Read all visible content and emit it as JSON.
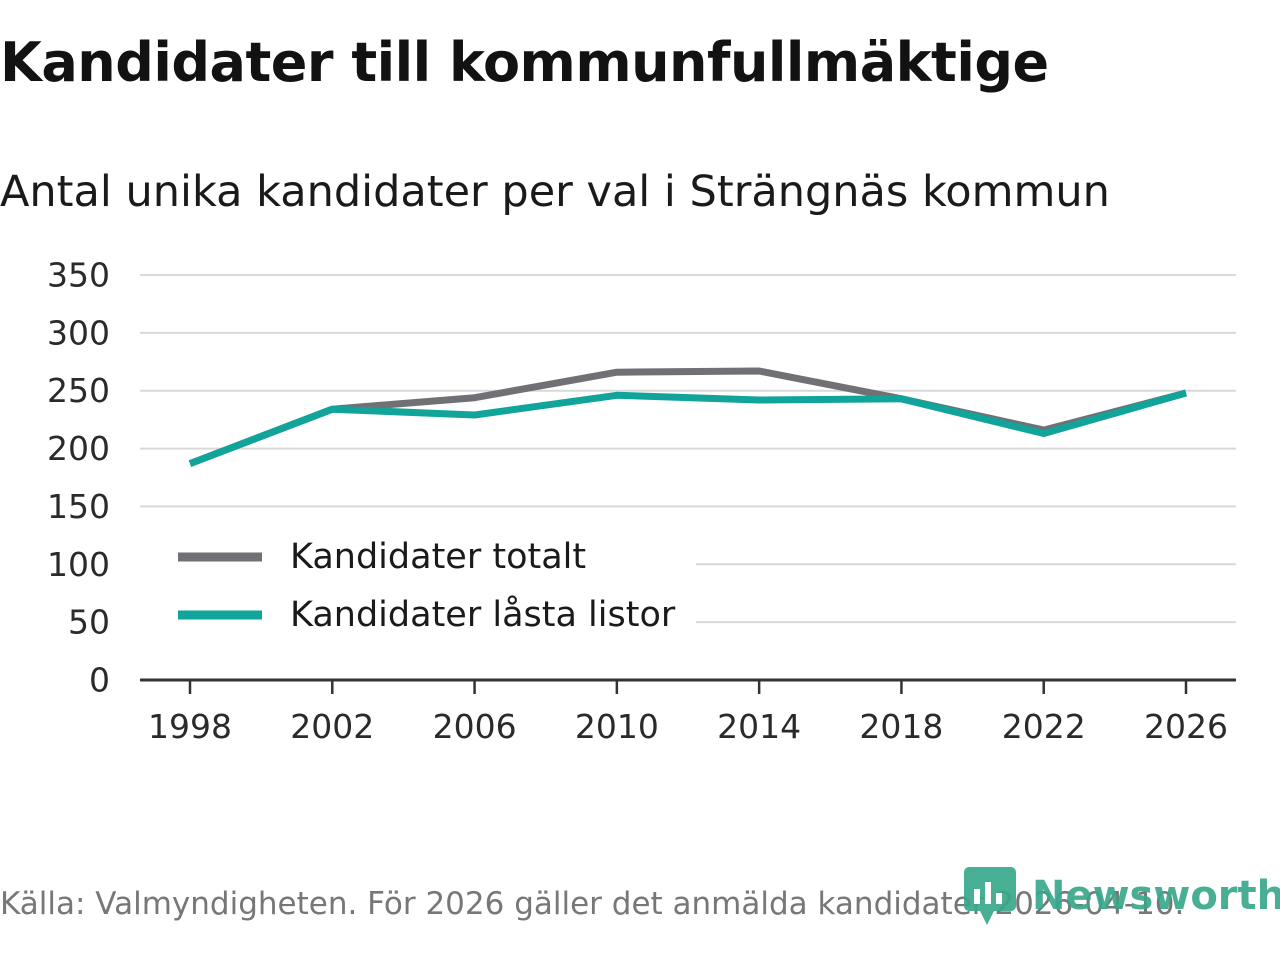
{
  "header": {
    "title": "Kandidater till kommunfullmäktige",
    "subtitle": "Antal unika kandidater per val i Strängnäs kommun"
  },
  "footer": {
    "source": "Källa: Valmyndigheten. För 2026 gäller det anmälda kandidater 2026-04-10.",
    "brand": "Newsworthy"
  },
  "colors": {
    "series_total": "#717075",
    "series_locked": "#10a49b",
    "grid": "#d9d9d9",
    "axis": "#333333",
    "brand": "#39a88b"
  },
  "chart_data": {
    "type": "line",
    "title": "Kandidater till kommunfullmäktige",
    "subtitle": "Antal unika kandidater per val i Strängnäs kommun",
    "xlabel": "",
    "ylabel": "",
    "x": [
      "1998",
      "2002",
      "2006",
      "2010",
      "2014",
      "2018",
      "2022",
      "2026"
    ],
    "ylim": [
      0,
      350
    ],
    "yticks": [
      0,
      50,
      100,
      150,
      200,
      250,
      300,
      350
    ],
    "grid": true,
    "legend_position": "bottom-left",
    "series": [
      {
        "name": "Kandidater totalt",
        "color": "#717075",
        "values": [
          187,
          234,
          244,
          266,
          267,
          243,
          216,
          248
        ]
      },
      {
        "name": "Kandidater låsta listor",
        "color": "#10a49b",
        "values": [
          187,
          234,
          229,
          246,
          242,
          243,
          213,
          248
        ]
      }
    ]
  }
}
